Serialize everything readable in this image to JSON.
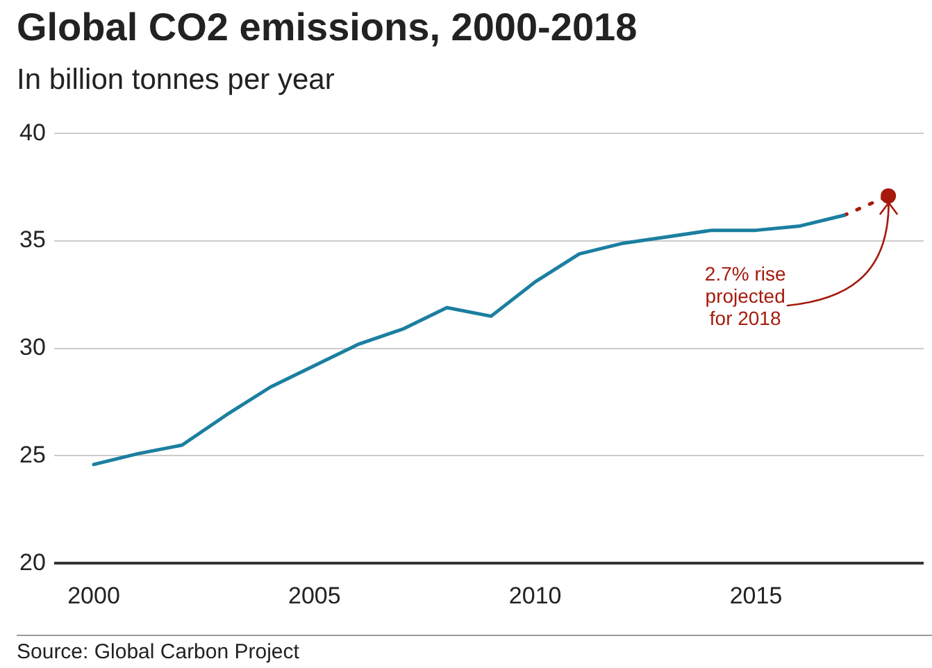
{
  "chart_data": {
    "type": "line",
    "title": "Global CO2 emissions, 2000-2018",
    "subtitle": "In billion tonnes per year",
    "x": [
      2000,
      2001,
      2002,
      2003,
      2004,
      2005,
      2006,
      2007,
      2008,
      2009,
      2010,
      2011,
      2012,
      2013,
      2014,
      2015,
      2016,
      2017,
      2018
    ],
    "series": [
      {
        "color": "#1b7fa0",
        "values": [
          24.6,
          25.1,
          25.5,
          26.9,
          28.2,
          29.2,
          30.2,
          30.9,
          31.9,
          31.5,
          33.1,
          34.4,
          34.9,
          35.2,
          35.5,
          35.5,
          35.7,
          36.2,
          null
        ]
      },
      {
        "type": "line",
        "line_style": "dotted",
        "color": "#a51a0c",
        "values": [
          null,
          null,
          null,
          null,
          null,
          null,
          null,
          null,
          null,
          null,
          null,
          null,
          null,
          null,
          null,
          null,
          null,
          36.2,
          37.1
        ]
      },
      {
        "type": "scatter",
        "marker": "circle",
        "color": "#a51a0c",
        "values": [
          null,
          null,
          null,
          null,
          null,
          null,
          null,
          null,
          null,
          null,
          null,
          null,
          null,
          null,
          null,
          null,
          null,
          null,
          37.1
        ]
      }
    ],
    "xlim": [
      1999.1,
      2018.8
    ],
    "xticks": [
      2000,
      2005,
      2010,
      2015
    ],
    "ylim": [
      20,
      40
    ],
    "yticks": [
      20,
      25,
      30,
      35,
      40
    ],
    "grid": "y",
    "legend": false,
    "annotations": [
      {
        "text": "2.7% rise\nprojected\nfor 2018",
        "x": 2018,
        "y": 37.1
      },
      "Source: Global Carbon Project"
    ]
  }
}
